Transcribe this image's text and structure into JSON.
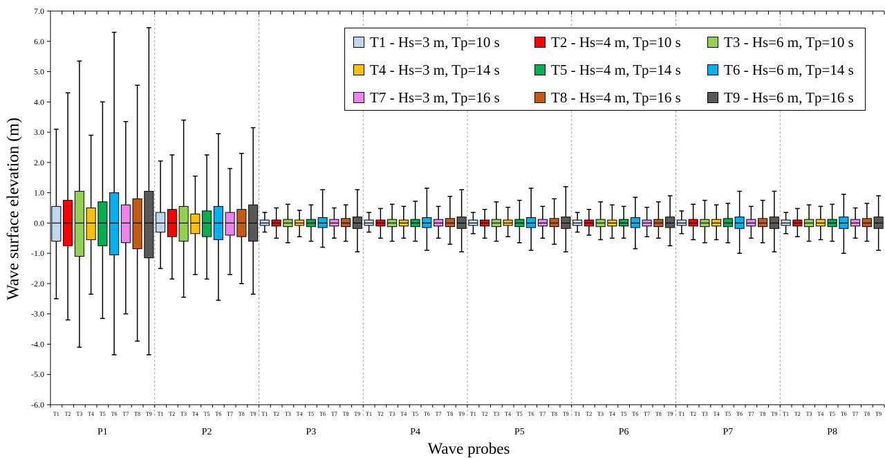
{
  "chart_data": {
    "type": "boxplot",
    "ylabel": "Wave surface elevation (m)",
    "xlabel": "Wave probes",
    "ylim": [
      -6.0,
      7.0
    ],
    "yticks": [
      "7.0",
      "6.0",
      "5.0",
      "4.0",
      "3.0",
      "2.0",
      "1.0",
      "0.0",
      "-1.0",
      "-2.0",
      "-3.0",
      "-4.0",
      "-5.0",
      "-6.0"
    ],
    "groups": [
      "P1",
      "P2",
      "P3",
      "P4",
      "P5",
      "P6",
      "P7",
      "P8"
    ],
    "cases": [
      "T1",
      "T2",
      "T3",
      "T4",
      "T5",
      "T6",
      "T7",
      "T8",
      "T9"
    ],
    "series": [
      {
        "name": "T1 - Hs=3 m, Tp=10 s",
        "color": "#bdd7ee"
      },
      {
        "name": "T2 - Hs=4 m, Tp=10 s",
        "color": "#ff0000"
      },
      {
        "name": "T3 - Hs=6 m, Tp=10 s",
        "color": "#92d050"
      },
      {
        "name": "T4 - Hs=3 m, Tp=14 s",
        "color": "#ffc000"
      },
      {
        "name": "T5 - Hs=4 m, Tp=14 s",
        "color": "#00b050"
      },
      {
        "name": "T6 - Hs=6 m, Tp=14 s",
        "color": "#00b0f0"
      },
      {
        "name": "T7 - Hs=3 m, Tp=16 s",
        "color": "#ee82ee"
      },
      {
        "name": "T8 - Hs=4 m, Tp=16 s",
        "color": "#c55a11"
      },
      {
        "name": "T9 - Hs=6 m, Tp=16 s",
        "color": "#595959"
      }
    ],
    "boxes": {
      "P1": [
        [
          -2.5,
          -0.6,
          0,
          0.55,
          3.1
        ],
        [
          -3.2,
          -0.75,
          0,
          0.75,
          4.3
        ],
        [
          -4.1,
          -1.1,
          0,
          1.05,
          5.35
        ],
        [
          -2.35,
          -0.55,
          0,
          0.5,
          2.9
        ],
        [
          -3.15,
          -0.75,
          0,
          0.7,
          4.0
        ],
        [
          -4.35,
          -1.05,
          0,
          1.0,
          6.3
        ],
        [
          -3.0,
          -0.65,
          0,
          0.6,
          3.35
        ],
        [
          -3.9,
          -0.85,
          0,
          0.8,
          4.55
        ],
        [
          -4.35,
          -1.15,
          0,
          1.05,
          6.45
        ]
      ],
      "P2": [
        [
          -1.5,
          -0.3,
          0,
          0.35,
          2.05
        ],
        [
          -1.85,
          -0.45,
          0,
          0.45,
          2.25
        ],
        [
          -2.45,
          -0.6,
          0,
          0.55,
          3.4
        ],
        [
          -1.7,
          -0.35,
          0,
          0.3,
          1.55
        ],
        [
          -1.85,
          -0.45,
          0,
          0.4,
          2.25
        ],
        [
          -2.55,
          -0.55,
          0,
          0.55,
          2.95
        ],
        [
          -1.7,
          -0.4,
          0,
          0.35,
          1.8
        ],
        [
          -2.0,
          -0.45,
          0,
          0.45,
          2.3
        ],
        [
          -2.35,
          -0.6,
          0,
          0.6,
          3.15
        ]
      ],
      "P3": [
        [
          -0.3,
          -0.08,
          0,
          0.1,
          0.35
        ],
        [
          -0.5,
          -0.1,
          0,
          0.1,
          0.5
        ],
        [
          -0.65,
          -0.12,
          0,
          0.12,
          0.62
        ],
        [
          -0.45,
          -0.08,
          0,
          0.1,
          0.42
        ],
        [
          -0.6,
          -0.12,
          0,
          0.12,
          0.6
        ],
        [
          -0.8,
          -0.15,
          0,
          0.18,
          1.1
        ],
        [
          -0.5,
          -0.1,
          0,
          0.12,
          0.5
        ],
        [
          -0.6,
          -0.12,
          0,
          0.15,
          0.6
        ],
        [
          -0.95,
          -0.18,
          0,
          0.2,
          1.1
        ]
      ],
      "P4": [
        [
          -0.3,
          -0.08,
          0,
          0.1,
          0.35
        ],
        [
          -0.5,
          -0.1,
          0,
          0.1,
          0.48
        ],
        [
          -0.6,
          -0.12,
          0,
          0.12,
          0.62
        ],
        [
          -0.5,
          -0.1,
          0,
          0.1,
          0.55
        ],
        [
          -0.6,
          -0.12,
          0,
          0.12,
          0.72
        ],
        [
          -0.9,
          -0.15,
          0,
          0.18,
          1.15
        ],
        [
          -0.5,
          -0.1,
          0,
          0.12,
          0.55
        ],
        [
          -0.7,
          -0.12,
          0,
          0.15,
          0.88
        ],
        [
          -0.95,
          -0.18,
          0,
          0.2,
          1.1
        ]
      ],
      "P5": [
        [
          -0.35,
          -0.08,
          0,
          0.1,
          0.35
        ],
        [
          -0.5,
          -0.1,
          0,
          0.1,
          0.45
        ],
        [
          -0.6,
          -0.12,
          0,
          0.12,
          0.7
        ],
        [
          -0.45,
          -0.08,
          0,
          0.1,
          0.52
        ],
        [
          -0.65,
          -0.12,
          0,
          0.12,
          0.75
        ],
        [
          -0.9,
          -0.15,
          0,
          0.18,
          1.15
        ],
        [
          -0.5,
          -0.1,
          0,
          0.12,
          0.55
        ],
        [
          -0.7,
          -0.12,
          0,
          0.15,
          0.8
        ],
        [
          -0.95,
          -0.18,
          0,
          0.2,
          1.2
        ]
      ],
      "P6": [
        [
          -0.3,
          -0.08,
          0,
          0.1,
          0.35
        ],
        [
          -0.4,
          -0.1,
          0,
          0.1,
          0.45
        ],
        [
          -0.55,
          -0.12,
          0,
          0.12,
          0.7
        ],
        [
          -0.5,
          -0.1,
          0,
          0.1,
          0.6
        ],
        [
          -0.5,
          -0.1,
          0,
          0.12,
          0.55
        ],
        [
          -0.85,
          -0.15,
          0,
          0.18,
          0.85
        ],
        [
          -0.45,
          -0.1,
          0,
          0.1,
          0.52
        ],
        [
          -0.5,
          -0.12,
          0,
          0.12,
          0.7
        ],
        [
          -0.75,
          -0.15,
          0,
          0.2,
          0.9
        ]
      ],
      "P7": [
        [
          -0.35,
          -0.08,
          0,
          0.1,
          0.4
        ],
        [
          -0.55,
          -0.1,
          0,
          0.12,
          0.62
        ],
        [
          -0.65,
          -0.12,
          0,
          0.12,
          0.75
        ],
        [
          -0.55,
          -0.1,
          0,
          0.12,
          0.6
        ],
        [
          -0.65,
          -0.12,
          0,
          0.15,
          0.65
        ],
        [
          -1.0,
          -0.18,
          0,
          0.2,
          1.05
        ],
        [
          -0.5,
          -0.1,
          0,
          0.12,
          0.55
        ],
        [
          -0.65,
          -0.12,
          0,
          0.15,
          0.75
        ],
        [
          -0.95,
          -0.18,
          0,
          0.2,
          1.05
        ]
      ],
      "P8": [
        [
          -0.35,
          -0.08,
          0,
          0.1,
          0.35
        ],
        [
          -0.45,
          -0.1,
          0,
          0.1,
          0.48
        ],
        [
          -0.6,
          -0.12,
          0,
          0.12,
          0.6
        ],
        [
          -0.55,
          -0.1,
          0,
          0.12,
          0.55
        ],
        [
          -0.6,
          -0.12,
          0,
          0.12,
          0.62
        ],
        [
          -1.0,
          -0.18,
          0,
          0.2,
          0.95
        ],
        [
          -0.5,
          -0.1,
          0,
          0.12,
          0.5
        ],
        [
          -0.6,
          -0.12,
          0,
          0.15,
          0.65
        ],
        [
          -0.9,
          -0.18,
          0,
          0.2,
          0.9
        ]
      ]
    }
  }
}
